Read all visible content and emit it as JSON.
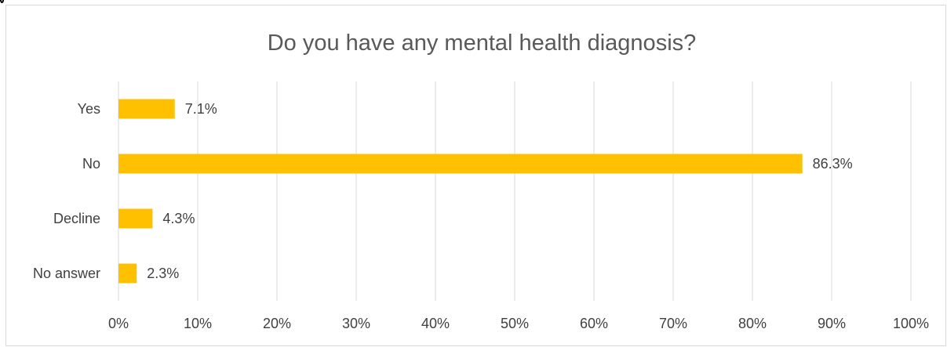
{
  "chart_data": {
    "type": "bar",
    "orientation": "horizontal",
    "title": "Do you have any mental health diagnosis?",
    "categories": [
      "Yes",
      "No",
      "Decline",
      "No answer"
    ],
    "values": [
      7.1,
      86.3,
      4.3,
      2.3
    ],
    "value_labels": [
      "7.1%",
      "86.3%",
      "4.3%",
      "2.3%"
    ],
    "xlim": [
      0,
      100
    ],
    "xticks": [
      0,
      10,
      20,
      30,
      40,
      50,
      60,
      70,
      80,
      90,
      100
    ],
    "xtick_labels": [
      "0%",
      "10%",
      "20%",
      "30%",
      "40%",
      "50%",
      "60%",
      "70%",
      "80%",
      "90%",
      "100%"
    ],
    "grid": true,
    "legend": "none",
    "bar_color": "#FFC000",
    "grid_color": "#D9D9D9"
  }
}
